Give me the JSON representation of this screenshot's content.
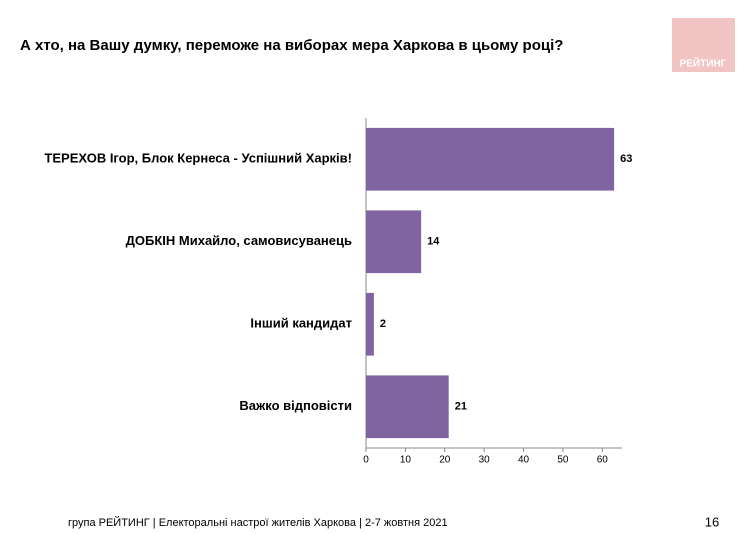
{
  "chart_data": {
    "type": "bar",
    "orientation": "horizontal",
    "title": "А хто, на Вашу думку, переможе на виборах мера Харкова в цьому році?",
    "categories": [
      "ТЕРЕХОВ Ігор, Блок Кернеса - Успішний Харків!",
      "ДОБКІН Михайло, самовисуванець",
      "Інший кандидат",
      "Важко відповісти"
    ],
    "values": [
      63,
      14,
      2,
      21
    ],
    "color": "#8064a2",
    "xlim": [
      0,
      65
    ],
    "xticks": [
      0,
      10,
      20,
      30,
      40,
      50,
      60
    ],
    "grid": false
  },
  "logo": "РЕЙТИНГ",
  "footer": "група РЕЙТИНГ  | Електоральні настрої жителів Харкова | 2-7 жовтня 2021",
  "page_number": "16"
}
